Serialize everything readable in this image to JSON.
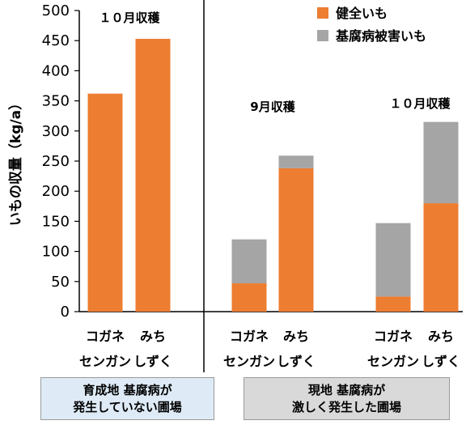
{
  "chart_data": {
    "type": "bar",
    "stacked": true,
    "ylabel": "いもの収量（kg/a）",
    "ylim": [
      0,
      500
    ],
    "yticks": [
      0,
      50,
      100,
      150,
      200,
      250,
      300,
      350,
      400,
      450,
      500
    ],
    "series": [
      {
        "name": "健全いも",
        "color": "#ED7D31",
        "values": [
          362,
          453,
          47,
          238,
          25,
          180
        ]
      },
      {
        "name": "基腐病被害いも",
        "color": "#A5A5A5",
        "values": [
          0,
          0,
          73,
          21,
          122,
          135
        ]
      }
    ],
    "categories": [
      {
        "line1": "コガネ",
        "line2": "センガン"
      },
      {
        "line1": "みち",
        "line2": "しずく"
      },
      {
        "line1": "コガネ",
        "line2": "センガン"
      },
      {
        "line1": "みち",
        "line2": "しずく"
      },
      {
        "line1": "コガネ",
        "line2": "センガン"
      },
      {
        "line1": "みち",
        "line2": "しずく"
      }
    ],
    "group_labels": [
      "１０月収穫",
      "9月収穫",
      "１０月収穫"
    ],
    "regions": [
      {
        "line1": "育成地 基腐病が",
        "line2": "発生していない圃場",
        "bg": "#DEEBF7"
      },
      {
        "line1": "現地 基腐病が",
        "line2": "激しく発生した圃場",
        "bg": "#D9D9D9"
      }
    ]
  }
}
